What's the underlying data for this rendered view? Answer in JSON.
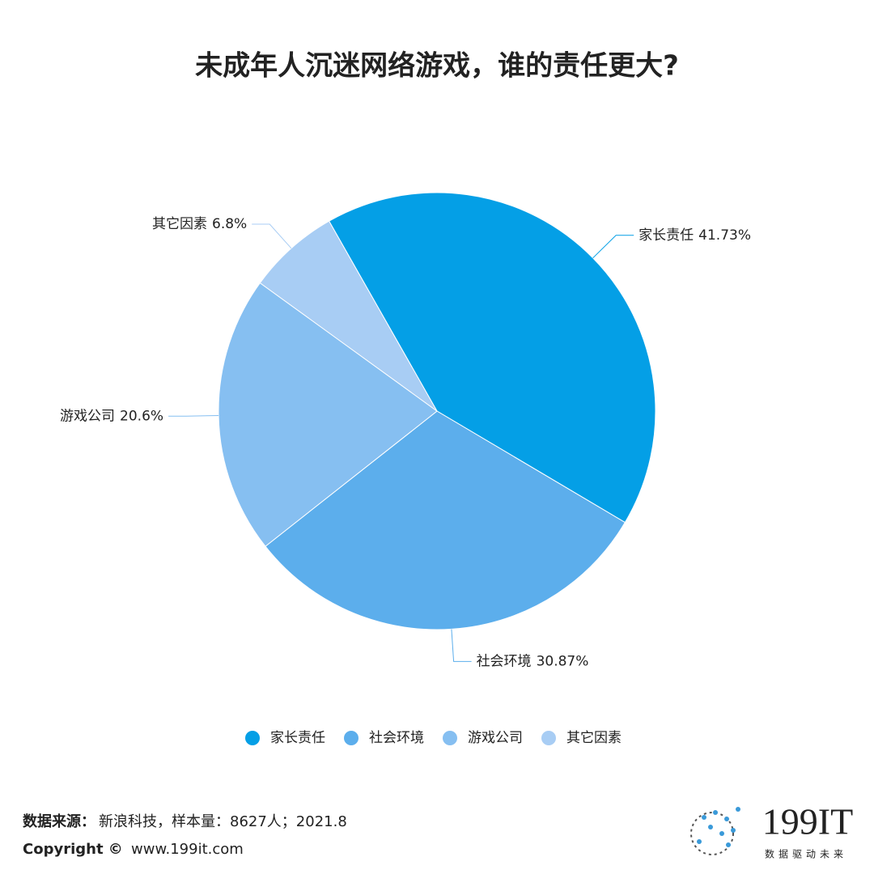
{
  "chart_data": {
    "type": "pie",
    "title": "未成年人沉迷网络游戏，谁的责任更大?",
    "categories": [
      "家长责任",
      "社会环境",
      "游戏公司",
      "其它因素"
    ],
    "values": [
      41.73,
      30.87,
      20.6,
      6.8
    ],
    "value_labels": [
      "41.73%",
      "30.87%",
      "20.6%",
      "6.8%"
    ],
    "colors": [
      "#049fe6",
      "#5caeec",
      "#86bff1",
      "#a8cdf4"
    ],
    "legend": "bottom"
  },
  "footer": {
    "source_label": "数据来源：",
    "source": "新浪科技，样本量：8627人；2021.8",
    "copyright": "Copyright ©",
    "url": "www.199it.com"
  },
  "logo": {
    "name": "199IT",
    "slogan": "数据驱动未来"
  }
}
